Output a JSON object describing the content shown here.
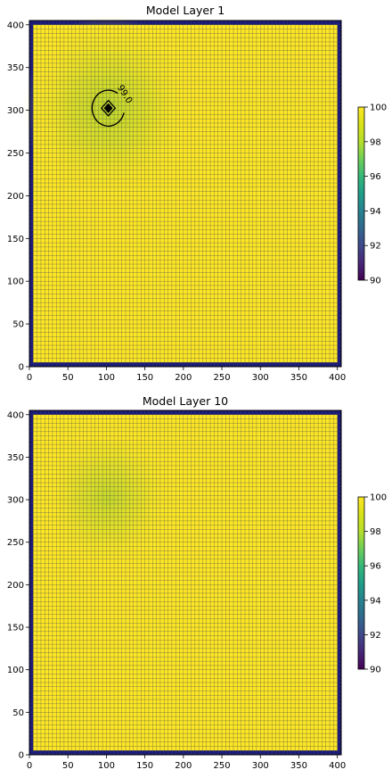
{
  "chart_data": [
    {
      "type": "heatmap",
      "title": "Model Layer 1",
      "xlabel": "",
      "ylabel": "",
      "xlim": [
        0,
        405
      ],
      "ylim": [
        0,
        405
      ],
      "x_ticks": [
        0,
        50,
        100,
        150,
        200,
        250,
        300,
        350,
        400
      ],
      "y_ticks": [
        0,
        50,
        100,
        150,
        200,
        250,
        300,
        350,
        400
      ],
      "grid_cells": 81,
      "cell_size": 5,
      "field": {
        "background_value": 100,
        "boundary_cells_inactive": true,
        "well_location": [
          102.5,
          302.5
        ],
        "min_value_at_well": 90.0
      },
      "contours": [
        {
          "level": 99.0,
          "label": "99.0"
        },
        {
          "level": 97.0,
          "label": ""
        },
        {
          "level": 95.0,
          "label": ""
        }
      ],
      "colorbar": {
        "colormap": "viridis",
        "vmin": 90,
        "vmax": 100,
        "ticks": [
          90,
          92,
          94,
          96,
          98,
          100
        ]
      },
      "colors": {
        "inactive": "#1a1a7a",
        "cell_edge": "#4a4a4a",
        "contour": "#000000"
      }
    },
    {
      "type": "heatmap",
      "title": "Model Layer 10",
      "xlabel": "",
      "ylabel": "",
      "xlim": [
        0,
        405
      ],
      "ylim": [
        0,
        405
      ],
      "x_ticks": [
        0,
        50,
        100,
        150,
        200,
        250,
        300,
        350,
        400
      ],
      "y_ticks": [
        0,
        50,
        100,
        150,
        200,
        250,
        300,
        350,
        400
      ],
      "grid_cells": 81,
      "cell_size": 5,
      "field": {
        "background_value": 100,
        "boundary_cells_inactive": true,
        "well_location": [
          102.5,
          302.5
        ],
        "min_value_at_well": 99.3
      },
      "contours": [],
      "colorbar": {
        "colormap": "viridis",
        "vmin": 90,
        "vmax": 100,
        "ticks": [
          90,
          92,
          94,
          96,
          98,
          100
        ]
      },
      "colors": {
        "inactive": "#1a1a7a",
        "cell_edge": "#4a4a4a",
        "contour": "#000000"
      }
    }
  ]
}
